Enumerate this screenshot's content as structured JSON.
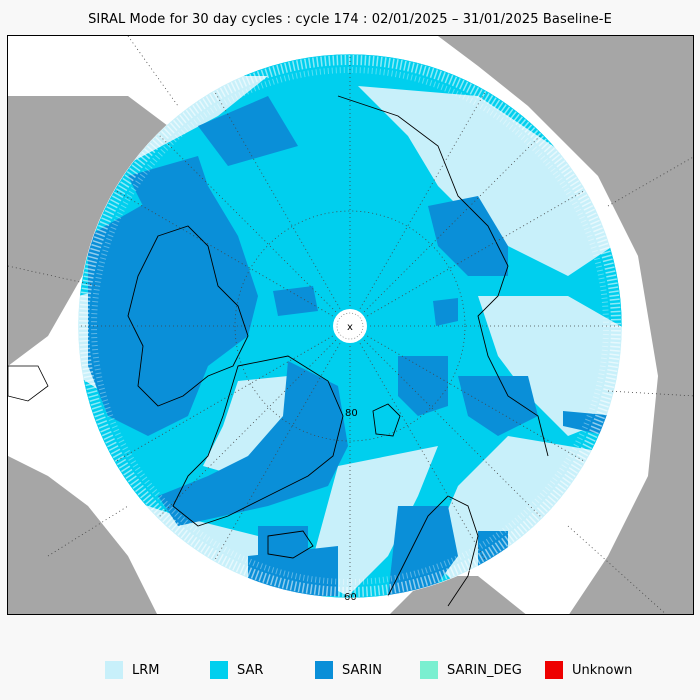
{
  "title": "SIRAL Mode for 30 day cycles : cycle 174 : 02/01/2025 – 31/01/2025 Baseline-E",
  "map": {
    "lat_labels": [
      "80",
      "60"
    ],
    "pole_mark": "x"
  },
  "legend": [
    {
      "label": "LRM",
      "color": "#c8f0fa"
    },
    {
      "label": "SAR",
      "color": "#00cfee"
    },
    {
      "label": "SARIN",
      "color": "#0a8fd8"
    },
    {
      "label": "SARIN_DEG",
      "color": "#7aefd0"
    },
    {
      "label": "Unknown",
      "color": "#ee0000"
    }
  ],
  "colors": {
    "land": "#a6a6a6",
    "ocean_outside": "#ffffff",
    "lrm": "#c8f0fa",
    "sar": "#00cfee",
    "sarin": "#0a8fd8",
    "coast": "#000000"
  }
}
